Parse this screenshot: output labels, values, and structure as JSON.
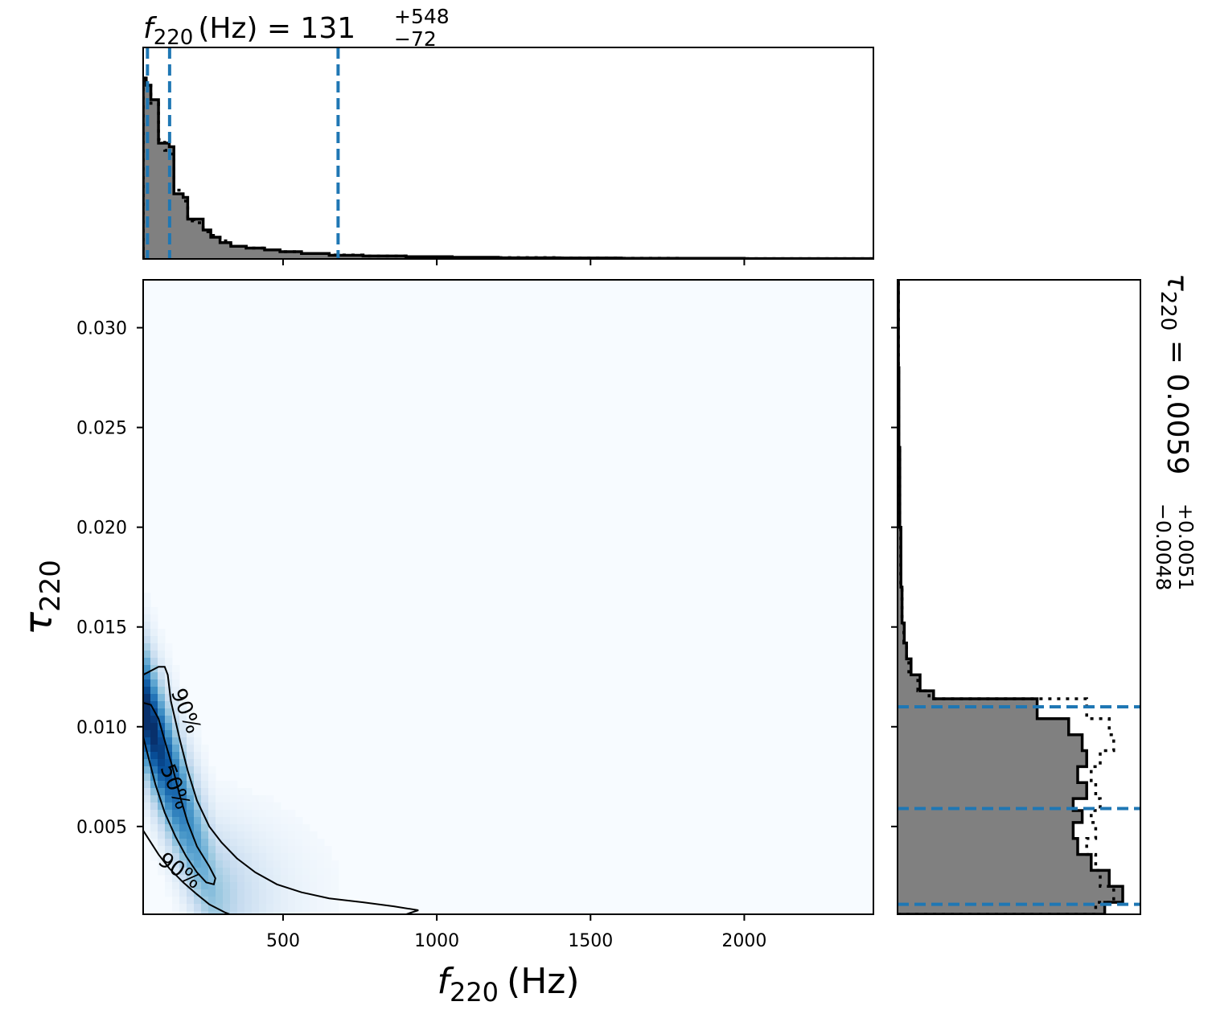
{
  "chart_data": [
    {
      "type": "heatmap",
      "panel": "joint",
      "xlabel": "f_220 (Hz)",
      "xlabel_main": "f",
      "xlabel_sub": "220",
      "xlabel_unit": "(Hz)",
      "ylabel": "τ_220",
      "ylabel_main": "τ",
      "ylabel_sub": "220",
      "xlim": [
        45,
        2420
      ],
      "ylim": [
        0.0006,
        0.0324
      ],
      "xticks": [
        500,
        1000,
        1500,
        2000
      ],
      "xtick_labels": [
        "500",
        "1000",
        "1500",
        "2000"
      ],
      "yticks": [
        0.005,
        0.01,
        0.015,
        0.02,
        0.025,
        0.03
      ],
      "ytick_labels": [
        "0.005",
        "0.010",
        "0.015",
        "0.020",
        "0.025",
        "0.030"
      ],
      "colormap": "Blues",
      "background_color": "#f7fbff",
      "contours": [
        {
          "label": "50%",
          "points": [
            [
              45,
              0.0112
            ],
            [
              70,
              0.0111
            ],
            [
              95,
              0.0104
            ],
            [
              115,
              0.0093
            ],
            [
              140,
              0.008
            ],
            [
              165,
              0.0065
            ],
            [
              190,
              0.0052
            ],
            [
              220,
              0.004
            ],
            [
              260,
              0.003
            ],
            [
              280,
              0.0024
            ],
            [
              275,
              0.0021
            ],
            [
              250,
              0.0022
            ],
            [
              220,
              0.0027
            ],
            [
              185,
              0.0035
            ],
            [
              150,
              0.0045
            ],
            [
              115,
              0.0057
            ],
            [
              85,
              0.0071
            ],
            [
              60,
              0.0086
            ],
            [
              45,
              0.0095
            ]
          ],
          "closed": true
        },
        {
          "label": "90%",
          "points": [
            [
              45,
              0.0126
            ],
            [
              95,
              0.013
            ],
            [
              115,
              0.013
            ],
            [
              125,
              0.0126
            ],
            [
              135,
              0.0113
            ],
            [
              165,
              0.0093
            ],
            [
              190,
              0.0078
            ],
            [
              220,
              0.0063
            ],
            [
              260,
              0.005
            ],
            [
              300,
              0.0042
            ],
            [
              350,
              0.0034
            ],
            [
              410,
              0.0027
            ],
            [
              480,
              0.0021
            ],
            [
              560,
              0.0017
            ],
            [
              650,
              0.0014
            ],
            [
              760,
              0.0012
            ],
            [
              860,
              0.001
            ],
            [
              940,
              0.0008
            ],
            [
              900,
              0.0006
            ],
            [
              870,
              0.0004
            ]
          ],
          "closed": false
        },
        {
          "label": "90%",
          "points": [
            [
              45,
              0.0048
            ],
            [
              95,
              0.0036
            ],
            [
              130,
              0.0029
            ],
            [
              175,
              0.0022
            ],
            [
              220,
              0.0016
            ],
            [
              260,
              0.0011
            ],
            [
              310,
              0.0007
            ],
            [
              360,
              0.0004
            ]
          ],
          "closed": false
        }
      ],
      "contour_labels": [
        {
          "text": "90%",
          "x": 185,
          "y": 0.0108,
          "rotation": 68
        },
        {
          "text": "50%",
          "x": 150,
          "y": 0.007,
          "rotation": 68
        },
        {
          "text": "90%",
          "x": 165,
          "y": 0.0028,
          "rotation": 35
        }
      ]
    },
    {
      "type": "histogram",
      "panel": "marginal-top",
      "title": "f_220 (Hz) = 131^{+548}_{-72}",
      "title_parts": {
        "main": "f",
        "sub": "220",
        "unit": "(Hz) = 131",
        "sup": "+548",
        "low": "−72"
      },
      "xlim": [
        45,
        2420
      ],
      "xticks": [
        500,
        1000,
        1500,
        2000
      ],
      "bin_edges": [
        45,
        55,
        70,
        95,
        115,
        130,
        145,
        175,
        190,
        210,
        240,
        265,
        295,
        330,
        380,
        440,
        490,
        560,
        650,
        760,
        900,
        1050,
        1200,
        1400,
        1600,
        1800,
        2000,
        2200,
        2420
      ],
      "counts": [
        100,
        96,
        88,
        64,
        64,
        62,
        36,
        34,
        22,
        22,
        16,
        12,
        9,
        7,
        6,
        5,
        4,
        3,
        2,
        1.6,
        1.2,
        0.9,
        0.6,
        0.5,
        0.3,
        0.3,
        0.2,
        0.2
      ],
      "counts_dotted": [
        100,
        98,
        86,
        66,
        60,
        58,
        38,
        32,
        21,
        20,
        15,
        13,
        10,
        7,
        6,
        5,
        4,
        3,
        2.2,
        1.6,
        1.1,
        0.8,
        0.7,
        0.5,
        0.4,
        0.3,
        0.2,
        0.2
      ],
      "ymax": 100,
      "fill_color": "#808080",
      "quantile_lines": [
        59,
        131,
        679
      ],
      "quantile_color": "#1f77b4"
    },
    {
      "type": "histogram",
      "panel": "marginal-right",
      "orientation": "horizontal",
      "title": "τ_220 = 0.0059^{+0.0051}_{-0.0048}",
      "title_parts": {
        "main": "τ",
        "sub": "220",
        "value": " = 0.0059",
        "sup": "+0.0051",
        "low": "−0.0048"
      },
      "ylim": [
        0.0006,
        0.0324
      ],
      "yticks": [
        0.005,
        0.01,
        0.015,
        0.02,
        0.025,
        0.03
      ],
      "bin_edges": [
        0.0006,
        0.0012,
        0.002,
        0.0028,
        0.0036,
        0.0044,
        0.0052,
        0.0058,
        0.0064,
        0.0072,
        0.008,
        0.0088,
        0.0096,
        0.0104,
        0.0114,
        0.0118,
        0.0126,
        0.0134,
        0.0142,
        0.0152,
        0.017,
        0.02,
        0.024,
        0.028,
        0.0324
      ],
      "counts": [
        92,
        100,
        94,
        86,
        80,
        78,
        82,
        78,
        84,
        80,
        84,
        82,
        76,
        62,
        16,
        10,
        6,
        4,
        3,
        2,
        1.5,
        1,
        0.6,
        0.4
      ],
      "counts_dotted": [
        88,
        96,
        90,
        88,
        84,
        88,
        86,
        90,
        88,
        86,
        90,
        96,
        94,
        84,
        14,
        9,
        5,
        4,
        2.8,
        2,
        1.4,
        1,
        0.5,
        0.4
      ],
      "xmax": 100,
      "fill_color": "#808080",
      "quantile_lines": [
        0.0011,
        0.0059,
        0.011
      ],
      "quantile_color": "#1f77b4"
    }
  ]
}
